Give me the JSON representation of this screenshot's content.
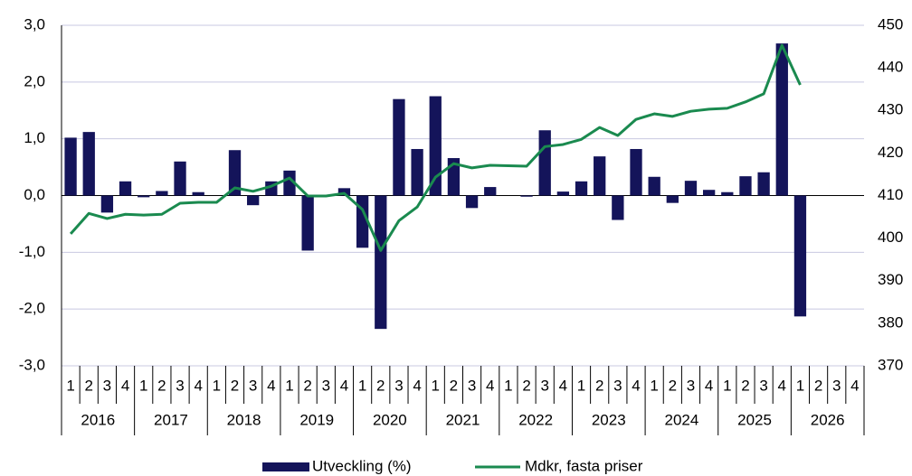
{
  "chart_data": {
    "type": "bar_line",
    "categories": [
      "1",
      "2",
      "3",
      "4",
      "1",
      "2",
      "3",
      "4",
      "1",
      "2",
      "3",
      "4",
      "1",
      "2",
      "3",
      "4",
      "1",
      "2",
      "3",
      "4",
      "1",
      "2",
      "3",
      "4",
      "1",
      "2",
      "3",
      "4",
      "1",
      "2",
      "3",
      "4",
      "1",
      "2",
      "3",
      "4",
      "1",
      "2",
      "3",
      "4",
      "1",
      "2",
      "3",
      "4"
    ],
    "years": [
      "2016",
      "2017",
      "2018",
      "2019",
      "2020",
      "2021",
      "2022",
      "2023",
      "2024",
      "2025",
      "2026"
    ],
    "series": [
      {
        "name": "Utveckling (%)",
        "type": "bar",
        "color": "#14145a",
        "axis": "y",
        "values": [
          1.02,
          1.12,
          -0.3,
          0.25,
          -0.03,
          0.08,
          0.6,
          0.06,
          0.0,
          0.8,
          -0.17,
          0.25,
          0.44,
          -0.97,
          0.0,
          0.13,
          -0.92,
          -2.35,
          1.7,
          0.82,
          1.75,
          0.66,
          -0.22,
          0.15,
          0.0,
          -0.02,
          1.15,
          0.07,
          0.25,
          0.69,
          -0.43,
          0.82,
          0.33,
          -0.13,
          0.26,
          0.1,
          0.06,
          0.34,
          0.41,
          2.68,
          -2.13,
          null,
          null,
          null
        ]
      },
      {
        "name": "Mdkr, fasta priser",
        "type": "line",
        "color": "#1a8a4f",
        "axis": "y2",
        "values": [
          401.0,
          405.8,
          404.6,
          405.6,
          405.4,
          405.6,
          408.2,
          408.4,
          408.4,
          411.8,
          411.0,
          412.2,
          414.1,
          409.9,
          409.9,
          410.5,
          406.7,
          397.1,
          404.1,
          407.3,
          414.3,
          417.5,
          416.5,
          417.1,
          417.0,
          416.9,
          421.5,
          422.0,
          423.2,
          426.0,
          424.1,
          427.9,
          429.2,
          428.6,
          429.8,
          430.3,
          430.5,
          432.0,
          433.9,
          445.3,
          436.0,
          null,
          null,
          null
        ]
      }
    ],
    "ylim": [
      -3,
      3
    ],
    "yticks": [
      {
        "value": -3,
        "label": "-3,0"
      },
      {
        "value": -2,
        "label": "-2,0"
      },
      {
        "value": -1,
        "label": "-1,0"
      },
      {
        "value": 0,
        "label": "0,0"
      },
      {
        "value": 1,
        "label": "1,0"
      },
      {
        "value": 2,
        "label": "2,0"
      },
      {
        "value": 3,
        "label": "3,0"
      }
    ],
    "y2lim": [
      370,
      450
    ],
    "y2ticks": [
      370,
      380,
      390,
      400,
      410,
      420,
      430,
      440,
      450
    ],
    "grid": true
  }
}
